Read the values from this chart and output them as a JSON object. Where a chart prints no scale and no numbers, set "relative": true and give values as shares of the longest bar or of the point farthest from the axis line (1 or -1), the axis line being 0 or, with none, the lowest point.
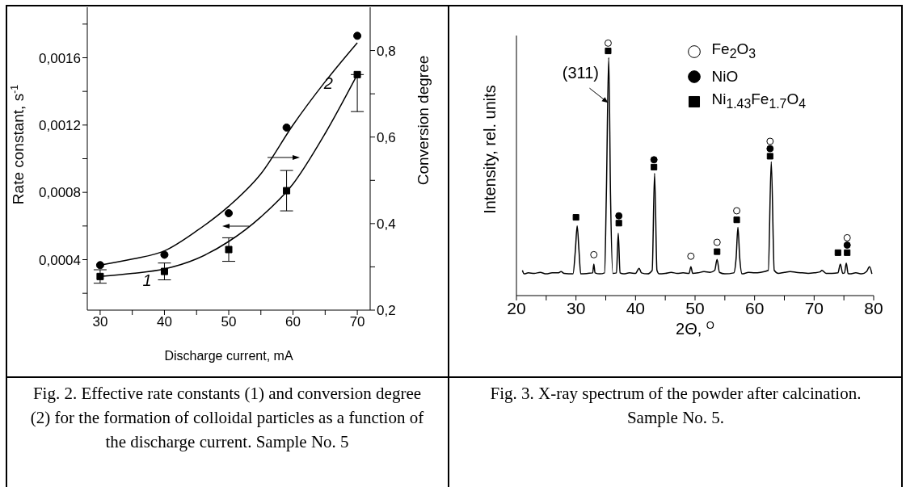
{
  "chart_data": [
    {
      "type": "scatter",
      "xlabel": "Discharge current, mA",
      "ylabel": "Rate constant, s$^{-1}$",
      "y2label": "Conversion degree",
      "x": [
        30,
        40,
        50,
        59,
        70
      ],
      "xlim": [
        28,
        72
      ],
      "xticks": [
        30,
        {
          "value": 35,
          "label": null
        },
        40,
        {
          "value": 45,
          "label": null
        },
        50,
        {
          "value": 55,
          "label": null
        },
        60,
        {
          "value": 65,
          "label": null
        },
        70
      ],
      "ylim": [
        0.0001,
        0.0019
      ],
      "yticks": [
        {
          "value": 0.0002,
          "label": null
        },
        {
          "value": 0.0004,
          "label": "0,0004"
        },
        {
          "value": 0.0006,
          "label": null
        },
        {
          "value": 0.0008,
          "label": "0,0008"
        },
        {
          "value": 0.001,
          "label": null
        },
        {
          "value": 0.0012,
          "label": "0,0012"
        },
        {
          "value": 0.0014,
          "label": null
        },
        {
          "value": 0.0016,
          "label": "0,0016"
        },
        {
          "value": 0.0018,
          "label": null
        }
      ],
      "y2lim": [
        0.2,
        0.9
      ],
      "y2ticks": [
        {
          "value": 0.2,
          "label": "0,2"
        },
        {
          "value": 0.3,
          "label": null
        },
        {
          "value": 0.4,
          "label": "0,4"
        },
        {
          "value": 0.5,
          "label": null
        },
        {
          "value": 0.6,
          "label": "0,6"
        },
        {
          "value": 0.7,
          "label": null
        },
        {
          "value": 0.8,
          "label": "0,8"
        }
      ],
      "series": [
        {
          "color": "#000000",
          "marker": "square",
          "values": [
            0.0003,
            0.00033,
            0.00046,
            0.00081,
            0.0015
          ],
          "errors": [
            4e-05,
            5e-05,
            7e-05,
            0.00012,
            [
              0.00128,
              0.0015
            ]
          ]
        },
        {
          "color": "#000000",
          "marker": "circle",
          "axis": "y2",
          "values": [
            0.304,
            0.328,
            0.424,
            0.622,
            0.834
          ]
        },
        {
          "type": "line",
          "color": "#000000",
          "marker": "none",
          "x": [
            30,
            35,
            40,
            45,
            50,
            55,
            60,
            65,
            70
          ],
          "values": [
            0.0003,
            0.000318,
            0.000345,
            0.000405,
            0.000508,
            0.000654,
            0.00085,
            0.00115,
            0.0015
          ]
        },
        {
          "type": "line",
          "color": "#000000",
          "marker": "none",
          "axis": "y2",
          "x": [
            30,
            35,
            40,
            45,
            50,
            55,
            60,
            65,
            70
          ],
          "values": [
            0.304,
            0.318,
            0.337,
            0.383,
            0.44,
            0.515,
            0.628,
            0.728,
            0.818
          ]
        }
      ],
      "annotations": [
        {
          "text": "1",
          "x": 37.3,
          "y": 0.000335
        },
        {
          "text": "2",
          "x": 65.5,
          "y": 0.00144
        },
        "Fig. 2. Effective rate constants (1) and conversion degree (2) for the formation of colloidal particles as a function of the discharge current. Sample No. 5"
      ]
    },
    {
      "type": "line",
      "relative": true,
      "xlabel": "2Θ, $^{O}$",
      "ylabel": "Intensity, rel. units",
      "legend": "top right",
      "xlim": [
        20,
        80
      ],
      "xticks": [
        20,
        {
          "value": 25,
          "label": null
        },
        30,
        {
          "value": 35,
          "label": null
        },
        40,
        {
          "value": 45,
          "label": null
        },
        50,
        {
          "value": 55,
          "label": null
        },
        60,
        {
          "value": 65,
          "label": null
        },
        70,
        {
          "value": 75,
          "label": null
        },
        80
      ],
      "series": [
        {
          "color": "#000000",
          "marker": "none",
          "x": [
            21,
            21.3,
            22,
            23,
            24,
            25,
            26,
            27,
            27.5,
            28,
            29.5,
            29.9,
            30.2,
            30.5,
            30.8,
            32,
            32.8,
            33,
            33.2,
            34,
            34.8,
            35.1,
            35.5,
            35.8,
            36.2,
            36.8,
            37.1,
            37.4,
            38,
            39,
            40,
            40.6,
            41,
            42,
            42.8,
            43.2,
            43.6,
            44,
            45,
            46,
            47,
            48,
            49,
            49.3,
            49.6,
            50.5,
            51.5,
            52.5,
            53.3,
            53.7,
            54.1,
            55,
            56.5,
            56.9,
            57.2,
            57.5,
            57.9,
            59,
            60,
            61,
            62.3,
            62.8,
            63.3,
            64,
            65,
            66,
            67,
            68,
            69,
            70,
            71,
            71.3,
            72,
            73,
            74,
            74.4,
            74.8,
            75.1,
            75.4,
            75.7,
            76,
            77,
            78,
            78.8,
            79.3,
            79.7
          ],
          "values": [
            0.1,
            0.086,
            0.09,
            0.088,
            0.092,
            0.086,
            0.09,
            0.09,
            0.095,
            0.088,
            0.086,
            0.18,
            0.276,
            0.18,
            0.086,
            0.088,
            0.09,
            0.125,
            0.09,
            0.086,
            0.09,
            0.4,
            0.943,
            0.4,
            0.088,
            0.09,
            0.247,
            0.09,
            0.086,
            0.09,
            0.088,
            0.108,
            0.09,
            0.086,
            0.1,
            0.485,
            0.1,
            0.086,
            0.088,
            0.092,
            0.088,
            0.09,
            0.088,
            0.114,
            0.088,
            0.09,
            0.095,
            0.092,
            0.1,
            0.143,
            0.092,
            0.086,
            0.09,
            0.15,
            0.27,
            0.15,
            0.086,
            0.092,
            0.09,
            0.092,
            0.1,
            0.53,
            0.1,
            0.088,
            0.092,
            0.095,
            0.092,
            0.09,
            0.088,
            0.09,
            0.094,
            0.1,
            0.088,
            0.088,
            0.09,
            0.125,
            0.088,
            0.09,
            0.129,
            0.088,
            0.086,
            0.09,
            0.086,
            0.095,
            0.114,
            0.086
          ]
        },
        {
          "type": "scatter",
          "name": "Fe$_{2}$O$_{3}$",
          "color": "#ffffff",
          "marker": "circle",
          "x": [
            33.0,
            35.4,
            49.3,
            53.7,
            57.0,
            62.6,
            75.55
          ],
          "values": [
            0.162,
            1.0,
            0.156,
            0.211,
            0.336,
            0.611,
            0.229
          ]
        },
        {
          "type": "scatter",
          "name": "NiO",
          "color": "#000000",
          "marker": "circle",
          "x": [
            37.2,
            43.1,
            62.6,
            75.55
          ],
          "values": [
            0.316,
            0.538,
            0.582,
            0.2
          ]
        },
        {
          "type": "scatter",
          "name": "Ni$_{1.43}$Fe$_{1.7}$O$_{4}$",
          "color": "#000000",
          "marker": "square",
          "x": [
            30.0,
            35.4,
            37.2,
            43.1,
            53.7,
            57.0,
            62.6,
            74.0,
            75.55
          ],
          "values": [
            0.31,
            0.969,
            0.287,
            0.509,
            0.174,
            0.3,
            0.552,
            0.17,
            0.17
          ]
        }
      ],
      "annotations": [
        {
          "text": "(311)",
          "x": 35.4,
          "y": 0.764
        },
        "Fig. 3. X-ray spectrum of the powder after calcination. Sample No. 5."
      ]
    }
  ]
}
